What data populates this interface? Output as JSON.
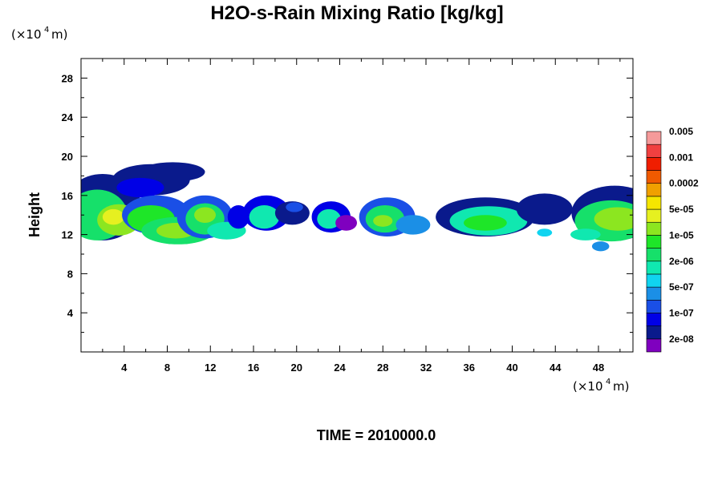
{
  "chart_data": {
    "type": "heatmap",
    "title": "H2O-s-Rain Mixing Ratio [kg/kg]",
    "ylabel": "Height",
    "x_unit": {
      "prefix": "(×10",
      "exp": "4",
      "suffix": " m)"
    },
    "y_unit": {
      "prefix": "(×10",
      "exp": "4",
      "suffix": " m)"
    },
    "xlim": [
      0,
      51.2
    ],
    "ylim": [
      0,
      30
    ],
    "x_ticks": [
      4,
      8,
      12,
      16,
      20,
      24,
      28,
      32,
      36,
      40,
      44,
      48
    ],
    "y_ticks": [
      4,
      8,
      12,
      16,
      20,
      24,
      28
    ],
    "time_label": "TIME = 2010000.0",
    "colorbar": {
      "colors": [
        "#7f00bf",
        "#0a1a8c",
        "#0000e6",
        "#1a4fe6",
        "#1b8fe6",
        "#10d4f0",
        "#10e8b0",
        "#16e06a",
        "#1ee628",
        "#8ce620",
        "#e6f020",
        "#f5e600",
        "#f0a000",
        "#f05a00",
        "#f01e00",
        "#f04040",
        "#f59a9a"
      ],
      "labels": [
        "2e-08",
        "1e-07",
        "5e-07",
        "2e-06",
        "1e-05",
        "5e-05",
        "0.0002",
        "0.001",
        "0.005"
      ]
    },
    "blobs": [
      {
        "cx": 2.0,
        "cy": 14.8,
        "rx": 3.6,
        "ry": 3.4,
        "level": 1
      },
      {
        "cx": 1.5,
        "cy": 14.0,
        "rx": 2.8,
        "ry": 2.6,
        "level": 7
      },
      {
        "cx": 3.5,
        "cy": 13.5,
        "rx": 2.0,
        "ry": 1.6,
        "level": 9
      },
      {
        "cx": 3.0,
        "cy": 13.8,
        "rx": 1.0,
        "ry": 0.8,
        "level": 10
      },
      {
        "cx": 6.5,
        "cy": 17.6,
        "rx": 3.6,
        "ry": 1.6,
        "level": 1
      },
      {
        "cx": 8.5,
        "cy": 18.4,
        "rx": 3.0,
        "ry": 1.0,
        "level": 1
      },
      {
        "cx": 5.5,
        "cy": 16.8,
        "rx": 2.2,
        "ry": 1.0,
        "level": 2
      },
      {
        "cx": 7.0,
        "cy": 14.0,
        "rx": 3.2,
        "ry": 2.0,
        "level": 3
      },
      {
        "cx": 6.5,
        "cy": 13.6,
        "rx": 2.2,
        "ry": 1.4,
        "level": 8
      },
      {
        "cx": 9.0,
        "cy": 12.4,
        "rx": 3.4,
        "ry": 1.4,
        "level": 7
      },
      {
        "cx": 8.8,
        "cy": 12.4,
        "rx": 1.8,
        "ry": 0.8,
        "level": 9
      },
      {
        "cx": 11.5,
        "cy": 13.8,
        "rx": 2.6,
        "ry": 2.2,
        "level": 3
      },
      {
        "cx": 11.5,
        "cy": 13.6,
        "rx": 1.8,
        "ry": 1.6,
        "level": 7
      },
      {
        "cx": 11.5,
        "cy": 14.0,
        "rx": 1.0,
        "ry": 0.8,
        "level": 9
      },
      {
        "cx": 13.5,
        "cy": 12.4,
        "rx": 1.8,
        "ry": 0.9,
        "level": 6
      },
      {
        "cx": 14.6,
        "cy": 13.8,
        "rx": 1.0,
        "ry": 1.2,
        "level": 2
      },
      {
        "cx": 17.2,
        "cy": 14.2,
        "rx": 2.2,
        "ry": 1.8,
        "level": 2
      },
      {
        "cx": 17.0,
        "cy": 13.8,
        "rx": 1.4,
        "ry": 1.2,
        "level": 6
      },
      {
        "cx": 19.6,
        "cy": 14.2,
        "rx": 1.6,
        "ry": 1.2,
        "level": 1
      },
      {
        "cx": 19.8,
        "cy": 14.8,
        "rx": 0.8,
        "ry": 0.5,
        "level": 3
      },
      {
        "cx": 23.2,
        "cy": 13.8,
        "rx": 1.8,
        "ry": 1.6,
        "level": 2
      },
      {
        "cx": 23.0,
        "cy": 13.6,
        "rx": 1.1,
        "ry": 1.0,
        "level": 6
      },
      {
        "cx": 24.6,
        "cy": 13.2,
        "rx": 1.0,
        "ry": 0.8,
        "level": 0
      },
      {
        "cx": 28.4,
        "cy": 13.8,
        "rx": 2.6,
        "ry": 2.0,
        "level": 3
      },
      {
        "cx": 28.2,
        "cy": 13.6,
        "rx": 1.8,
        "ry": 1.4,
        "level": 7
      },
      {
        "cx": 28.0,
        "cy": 13.4,
        "rx": 0.9,
        "ry": 0.6,
        "level": 9
      },
      {
        "cx": 30.8,
        "cy": 13.0,
        "rx": 1.6,
        "ry": 1.0,
        "level": 4
      },
      {
        "cx": 37.5,
        "cy": 13.8,
        "rx": 4.6,
        "ry": 2.0,
        "level": 1
      },
      {
        "cx": 37.8,
        "cy": 13.4,
        "rx": 3.6,
        "ry": 1.5,
        "level": 6
      },
      {
        "cx": 37.5,
        "cy": 13.2,
        "rx": 2.0,
        "ry": 0.8,
        "level": 8
      },
      {
        "cx": 43.0,
        "cy": 14.6,
        "rx": 2.6,
        "ry": 1.6,
        "level": 1
      },
      {
        "cx": 49.5,
        "cy": 14.2,
        "rx": 4.0,
        "ry": 2.8,
        "level": 1
      },
      {
        "cx": 49.2,
        "cy": 13.4,
        "rx": 3.4,
        "ry": 2.1,
        "level": 7
      },
      {
        "cx": 49.8,
        "cy": 13.6,
        "rx": 2.2,
        "ry": 1.2,
        "level": 9
      },
      {
        "cx": 46.8,
        "cy": 12.0,
        "rx": 1.4,
        "ry": 0.6,
        "level": 6
      },
      {
        "cx": 43.0,
        "cy": 12.2,
        "rx": 0.7,
        "ry": 0.4,
        "level": 5
      },
      {
        "cx": 48.2,
        "cy": 10.8,
        "rx": 0.8,
        "ry": 0.5,
        "level": 4
      }
    ]
  }
}
